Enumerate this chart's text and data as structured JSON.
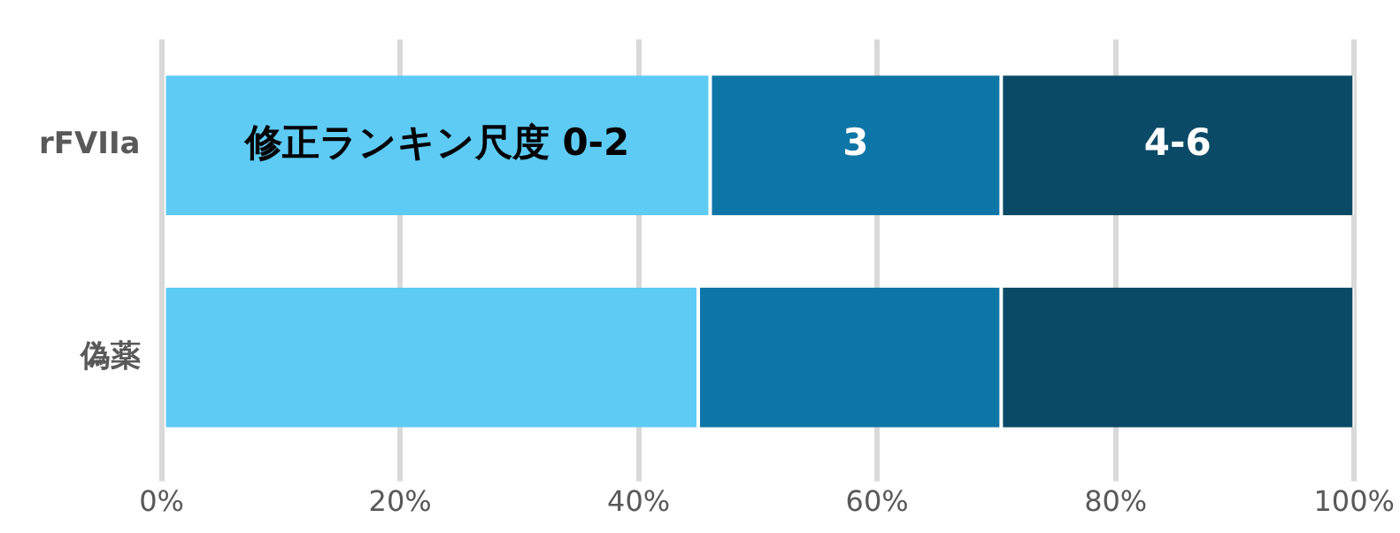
{
  "chart_data": {
    "type": "bar",
    "orientation": "horizontal",
    "stacked": true,
    "categories": [
      "rFVIIa",
      "偽薬"
    ],
    "series": [
      {
        "name": "修正ランキン尺度 0-2",
        "color": "#5ecbf5",
        "values": [
          46,
          45
        ]
      },
      {
        "name": "3",
        "color": "#0e76a6",
        "values": [
          24.4,
          25.4
        ]
      },
      {
        "name": "4-6",
        "color": "#0b4a66",
        "values": [
          29.6,
          29.6
        ]
      }
    ],
    "xlim": [
      0,
      100
    ],
    "xticks": [
      {
        "value": 0,
        "label": "0%"
      },
      {
        "value": 20,
        "label": "20%"
      },
      {
        "value": 40,
        "label": "40%"
      },
      {
        "value": 60,
        "label": "60%"
      },
      {
        "value": 80,
        "label": "80%"
      },
      {
        "value": 100,
        "label": "100%"
      }
    ],
    "grid": "x",
    "legend": false
  }
}
